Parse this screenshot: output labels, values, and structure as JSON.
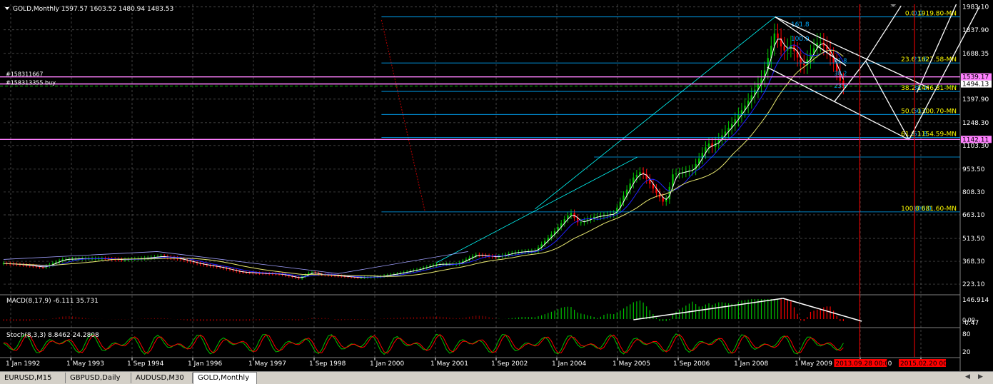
{
  "header": {
    "symbol": "GOLD,Monthly",
    "ohlc": "1597.57 1603.52 1480.94 1483.53"
  },
  "chart_data": {
    "type": "candlestick",
    "title": "GOLD,Monthly",
    "ohlc_last": {
      "open": 1597.57,
      "high": 1603.52,
      "low": 1480.94,
      "close": 1483.53
    },
    "price_axis": [
      "1983.10",
      "1837.90",
      "1688.35",
      "1539.17",
      "1494.13",
      "1397.90",
      "1248.30",
      "1103.30",
      "953.50",
      "808.30",
      "663.10",
      "513.50",
      "368.30",
      "223.10"
    ],
    "time_axis": [
      "1 Jan 1992",
      "1 May 1993",
      "1 Sep 1994",
      "1 Jan 1996",
      "1 May 1997",
      "1 Sep 1998",
      "1 Jan 2000",
      "1 May 2001",
      "1 Sep 2002",
      "1 Jan 2004",
      "1 May 2005",
      "1 Sep 2006",
      "1 Jan 2008",
      "1 May 2009",
      "1 Sep 2010",
      "1 Jan 201"
    ],
    "time_markers": [
      "2013.09.28 00:0",
      "2015.02.20 00:00"
    ],
    "y_range": [
      160,
      2000
    ],
    "x_range": [
      1992.0,
      2016.3
    ],
    "close_series": [
      [
        1992.0,
        355
      ],
      [
        1992.5,
        345
      ],
      [
        1993.0,
        330
      ],
      [
        1993.5,
        380
      ],
      [
        1994.0,
        385
      ],
      [
        1994.5,
        385
      ],
      [
        1995.0,
        378
      ],
      [
        1995.5,
        386
      ],
      [
        1996.0,
        400
      ],
      [
        1996.5,
        382
      ],
      [
        1997.0,
        350
      ],
      [
        1997.5,
        330
      ],
      [
        1998.0,
        300
      ],
      [
        1998.5,
        292
      ],
      [
        1999.0,
        287
      ],
      [
        1999.5,
        260
      ],
      [
        1999.8,
        300
      ],
      [
        2000.0,
        285
      ],
      [
        2000.5,
        275
      ],
      [
        2001.0,
        265
      ],
      [
        2001.5,
        270
      ],
      [
        2002.0,
        290
      ],
      [
        2002.5,
        315
      ],
      [
        2003.0,
        350
      ],
      [
        2003.5,
        350
      ],
      [
        2004.0,
        410
      ],
      [
        2004.5,
        395
      ],
      [
        2005.0,
        425
      ],
      [
        2005.5,
        435
      ],
      [
        2006.0,
        560
      ],
      [
        2006.4,
        680
      ],
      [
        2006.6,
        610
      ],
      [
        2007.0,
        650
      ],
      [
        2007.5,
        670
      ],
      [
        2008.0,
        900
      ],
      [
        2008.2,
        940
      ],
      [
        2008.5,
        830
      ],
      [
        2008.8,
        730
      ],
      [
        2009.0,
        920
      ],
      [
        2009.5,
        950
      ],
      [
        2009.9,
        1120
      ],
      [
        2010.0,
        1095
      ],
      [
        2010.5,
        1240
      ],
      [
        2010.9,
        1380
      ],
      [
        2011.3,
        1550
      ],
      [
        2011.6,
        1830
      ],
      [
        2011.8,
        1700
      ],
      [
        2012.0,
        1740
      ],
      [
        2012.3,
        1600
      ],
      [
        2012.7,
        1770
      ],
      [
        2012.9,
        1720
      ],
      [
        2013.1,
        1620
      ],
      [
        2013.3,
        1480
      ]
    ],
    "indicators": {
      "macd": {
        "label": "MACD(8,17,9) -6.111 35.731",
        "axis": [
          "146.914",
          "0.00",
          "-0.47"
        ]
      },
      "stoch": {
        "label": "Stoch(8,3,3) 8.8462 24.2808",
        "axis": [
          "80",
          "20"
        ]
      }
    },
    "horizontal_lines": [
      {
        "label": "#158311667",
        "price": 1539.17
      },
      {
        "label": "#158313355 buy",
        "price": 1494.13
      },
      {
        "label": "",
        "price": 1142.11
      }
    ],
    "fibonacci_left": [
      "0.0",
      "161.8",
      "100.0",
      "23.6",
      "38.2",
      "50.0",
      "61.8",
      "100.0"
    ],
    "fibonacci_right": [
      "0.0 1919.80-MN",
      "23.6 1627.58-MN",
      "38.2 1446.81-MN",
      "50.0 1300.70-MN",
      "61.8 1154.59-MN",
      "100.0 681.60-MN"
    ],
    "fan_labels": [
      "61.8",
      "38.2",
      "23.6"
    ]
  },
  "colors": {
    "background": "#000000",
    "grid": "#5a5a5a",
    "bull": "#00c000",
    "bear": "#ff0000",
    "fib": "#00aaff",
    "fib_text": "#ffff00",
    "pink": "#ff80ff",
    "axis_text": "#ffffff"
  },
  "tabs": [
    "EURUSD,M15",
    "GBPUSD,Daily",
    "AUDUSD,M30",
    "GOLD,Monthly"
  ],
  "active_tab": "GOLD,Monthly"
}
